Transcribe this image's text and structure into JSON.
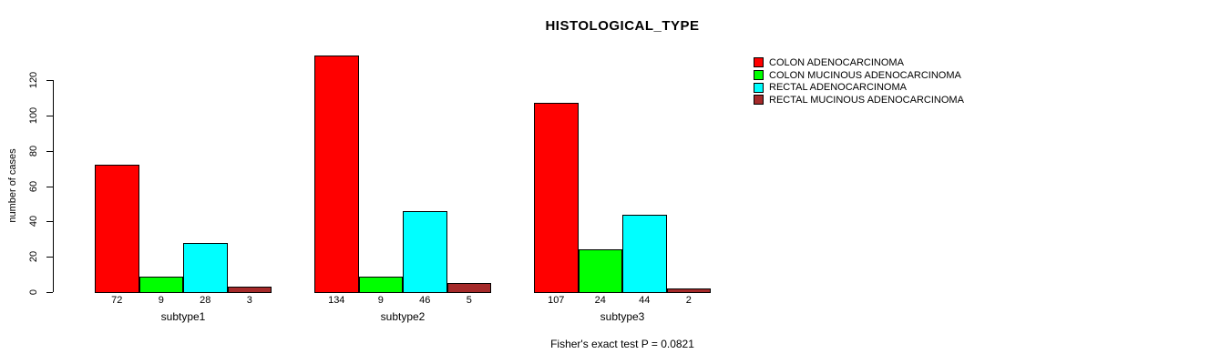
{
  "chart_data": {
    "type": "bar",
    "title": "HISTOLOGICAL_TYPE",
    "ylabel": "number of cases",
    "categories": [
      "subtype1",
      "subtype2",
      "subtype3"
    ],
    "series": [
      {
        "name": "COLON ADENOCARCINOMA",
        "color": "#FF0000",
        "values": [
          72,
          134,
          107
        ]
      },
      {
        "name": "COLON MUCINOUS ADENOCARCINOMA",
        "color": "#00FF00",
        "values": [
          9,
          9,
          24
        ]
      },
      {
        "name": "RECTAL ADENOCARCINOMA",
        "color": "#00FFFF",
        "values": [
          28,
          46,
          44
        ]
      },
      {
        "name": "RECTAL MUCINOUS ADENOCARCINOMA",
        "color": "#A52A2A",
        "values": [
          3,
          5,
          2
        ]
      }
    ],
    "yticks": [
      0,
      20,
      40,
      60,
      80,
      100,
      120
    ],
    "ylim": [
      0,
      134
    ],
    "grid": false,
    "legend_position": "top-right",
    "bar_value_labels": true,
    "bar_border_color": "#000000"
  },
  "footnote": "Fisher's exact test P = 0.0821"
}
